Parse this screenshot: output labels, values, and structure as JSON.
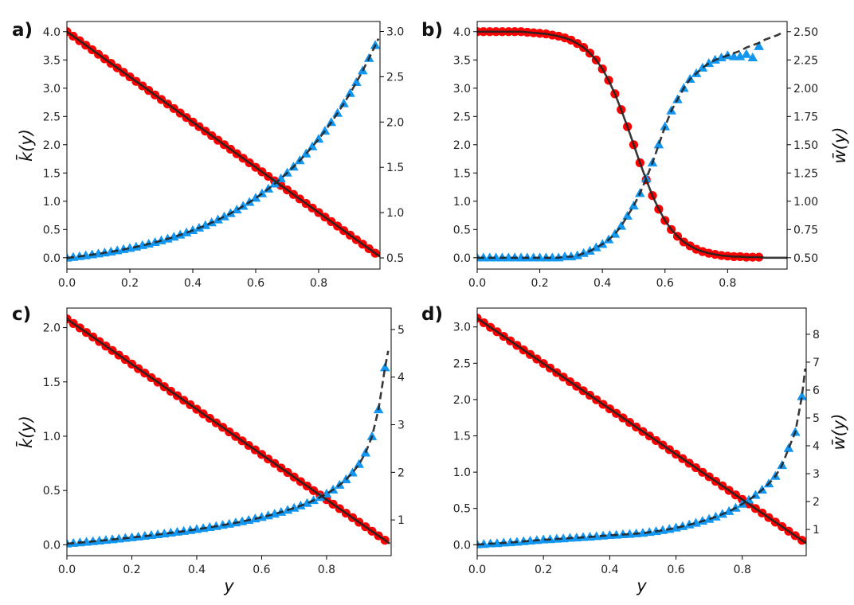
{
  "chart_data": {
    "x": [
      0,
      0.02,
      0.04,
      0.06,
      0.08,
      0.1,
      0.12,
      0.14,
      0.16,
      0.18,
      0.2,
      0.22,
      0.24,
      0.26,
      0.28,
      0.3,
      0.32,
      0.34,
      0.36,
      0.38,
      0.4,
      0.42,
      0.44,
      0.46,
      0.48,
      0.5,
      0.52,
      0.54,
      0.56,
      0.58,
      0.6,
      0.62,
      0.64,
      0.66,
      0.68,
      0.7,
      0.72,
      0.74,
      0.76,
      0.78,
      0.8,
      0.82,
      0.84,
      0.86,
      0.88,
      0.9,
      0.92,
      0.94,
      0.96,
      0.98
    ],
    "colors": {
      "k_markers": "#ff0000",
      "w_markers": "#1296f0",
      "theory": "#222222"
    },
    "panels": [
      {
        "label": "a)",
        "type": "line+scatter",
        "xlabel": "",
        "ylabel_left": "k̄(y)",
        "ylabel_right": "",
        "xlim": [
          0,
          0.995
        ],
        "ylim_left": [
          -0.2,
          4.18
        ],
        "ylim_right": [
          0.377,
          3.11
        ],
        "xticks": [
          0,
          0.2,
          0.4,
          0.6,
          0.8
        ],
        "xticklabels": [
          "0.0",
          "0.2",
          "0.4",
          "0.6",
          "0.8"
        ],
        "yticks_left": [
          0,
          0.5,
          1,
          1.5,
          2,
          2.5,
          3,
          3.5,
          4
        ],
        "yticklabels_left": [
          "0.0",
          "0.5",
          "1.0",
          "1.5",
          "2.0",
          "2.5",
          "3.0",
          "3.5",
          "4.0"
        ],
        "yticks_right": [
          0.5,
          1,
          1.5,
          2,
          2.5,
          3
        ],
        "yticklabels_right": [
          "0.5",
          "1.0",
          "1.5",
          "2.0",
          "2.5",
          "3.0"
        ],
        "series": [
          {
            "name": "k_markers",
            "axis": "left",
            "kind": "circle",
            "values": [
              4.0,
              3.92,
              3.84,
              3.76,
              3.68,
              3.6,
              3.52,
              3.44,
              3.36,
              3.28,
              3.2,
              3.12,
              3.04,
              2.96,
              2.88,
              2.8,
              2.72,
              2.64,
              2.56,
              2.48,
              2.4,
              2.32,
              2.24,
              2.16,
              2.08,
              2.0,
              1.92,
              1.84,
              1.76,
              1.68,
              1.6,
              1.52,
              1.44,
              1.36,
              1.28,
              1.2,
              1.12,
              1.04,
              0.96,
              0.88,
              0.8,
              0.72,
              0.64,
              0.56,
              0.48,
              0.4,
              0.32,
              0.24,
              0.16,
              0.08
            ]
          },
          {
            "name": "w_markers",
            "axis": "right",
            "kind": "triangle",
            "values": [
              0.5,
              0.508,
              0.517,
              0.526,
              0.536,
              0.546,
              0.557,
              0.568,
              0.581,
              0.594,
              0.608,
              0.622,
              0.638,
              0.655,
              0.672,
              0.691,
              0.711,
              0.732,
              0.755,
              0.779,
              0.804,
              0.831,
              0.859,
              0.89,
              0.922,
              0.956,
              0.992,
              1.031,
              1.072,
              1.115,
              1.161,
              1.21,
              1.262,
              1.318,
              1.376,
              1.439,
              1.505,
              1.575,
              1.65,
              1.729,
              1.813,
              1.902,
              1.997,
              2.098,
              2.205,
              2.318,
              2.439,
              2.567,
              2.703,
              2.847
            ]
          },
          {
            "name": "k_theory",
            "axis": "left",
            "kind": "solid",
            "values_from": "k_markers",
            "extra": [
              [
                0.995,
                0.02
              ]
            ]
          },
          {
            "name": "w_theory",
            "axis": "right",
            "kind": "dashed",
            "values_from": "w_markers",
            "extra": [
              [
                0.99,
                2.92
              ]
            ]
          }
        ]
      },
      {
        "label": "b)",
        "type": "line+scatter",
        "xlabel": "",
        "ylabel_left": "",
        "ylabel_right": "w̄(y)",
        "xlim": [
          0,
          0.99
        ],
        "ylim_left": [
          -0.2,
          4.18
        ],
        "ylim_right": [
          0.4,
          2.59
        ],
        "xticks": [
          0,
          0.2,
          0.4,
          0.6,
          0.8
        ],
        "xticklabels": [
          "0.0",
          "0.2",
          "0.4",
          "0.6",
          "0.8"
        ],
        "yticks_left": [
          0,
          0.5,
          1,
          1.5,
          2,
          2.5,
          3,
          3.5,
          4
        ],
        "yticklabels_left": [
          "0.0",
          "0.5",
          "1.0",
          "1.5",
          "2.0",
          "2.5",
          "3.0",
          "3.5",
          "4.0"
        ],
        "yticks_right": [
          0.5,
          0.75,
          1,
          1.25,
          1.5,
          1.75,
          2,
          2.25,
          2.5
        ],
        "yticklabels_right": [
          "0.50",
          "0.75",
          "1.00",
          "1.25",
          "1.50",
          "1.75",
          "2.00",
          "2.25",
          "2.50"
        ],
        "series": [
          {
            "name": "k_markers",
            "axis": "left",
            "kind": "circle",
            "values": [
              4.0,
              4.0,
              4.0,
              4.0,
              4.0,
              4.0,
              4.0,
              4.0,
              3.99,
              3.98,
              3.97,
              3.96,
              3.94,
              3.92,
              3.89,
              3.85,
              3.79,
              3.72,
              3.62,
              3.5,
              3.34,
              3.14,
              2.9,
              2.62,
              2.32,
              2.0,
              1.68,
              1.38,
              1.1,
              0.86,
              0.66,
              0.5,
              0.38,
              0.28,
              0.21,
              0.15,
              0.11,
              0.08,
              0.06,
              0.04,
              0.03,
              0.02,
              0.02,
              0.01,
              0.01,
              0.01
            ]
          },
          {
            "name": "w_markers",
            "axis": "right",
            "kind": "triangle",
            "values": [
              0.5,
              0.5,
              0.5,
              0.5,
              0.5,
              0.5,
              0.5,
              0.5,
              0.5,
              0.5,
              0.5,
              0.5,
              0.5,
              0.5,
              0.51,
              0.51,
              0.52,
              0.54,
              0.56,
              0.59,
              0.62,
              0.66,
              0.71,
              0.78,
              0.87,
              0.96,
              1.07,
              1.2,
              1.34,
              1.5,
              1.66,
              1.8,
              1.9,
              2.0,
              2.08,
              2.13,
              2.18,
              2.22,
              2.25,
              2.27,
              2.29,
              2.28,
              2.28,
              2.3,
              2.27,
              2.37
            ]
          },
          {
            "name": "k_theory",
            "axis": "left",
            "kind": "solid",
            "values_from": "k_markers",
            "extra": [
              [
                0.92,
                0
              ],
              [
                0.94,
                0
              ],
              [
                0.96,
                0
              ],
              [
                0.98,
                0
              ],
              [
                0.99,
                0
              ]
            ]
          },
          {
            "name": "w_theory",
            "axis": "right",
            "kind": "dashed",
            "values": [
              0.5,
              0.5,
              0.5,
              0.5,
              0.5,
              0.5,
              0.5,
              0.5,
              0.5,
              0.5,
              0.5,
              0.5,
              0.5,
              0.5,
              0.51,
              0.51,
              0.52,
              0.54,
              0.56,
              0.59,
              0.62,
              0.66,
              0.71,
              0.78,
              0.87,
              0.96,
              1.07,
              1.2,
              1.34,
              1.5,
              1.66,
              1.8,
              1.9,
              2.0,
              2.08,
              2.13,
              2.18,
              2.22,
              2.25,
              2.27,
              2.29,
              2.31,
              2.33,
              2.36,
              2.38,
              2.4,
              2.43,
              2.45,
              2.47,
              2.5
            ]
          }
        ]
      },
      {
        "label": "c)",
        "type": "line+scatter",
        "xlabel": "y",
        "ylabel_left": "k̄(y)",
        "ylabel_right": "",
        "xlim": [
          0,
          0.999
        ],
        "ylim_left": [
          -0.1,
          2.18
        ],
        "ylim_right": [
          0.25,
          5.45
        ],
        "xticks": [
          0,
          0.2,
          0.4,
          0.6,
          0.8
        ],
        "xticklabels": [
          "0.0",
          "0.2",
          "0.4",
          "0.6",
          "0.8"
        ],
        "yticks_left": [
          0,
          0.5,
          1,
          1.5,
          2
        ],
        "yticklabels_left": [
          "0.0",
          "0.5",
          "1.0",
          "1.5",
          "2.0"
        ],
        "yticks_right": [
          1,
          2,
          3,
          4,
          5
        ],
        "yticklabels_right": [
          "1",
          "2",
          "3",
          "4",
          "5"
        ],
        "series": [
          {
            "name": "k_markers",
            "axis": "left",
            "kind": "circle",
            "values": [
              2.08,
              2.038,
              1.997,
              1.955,
              1.914,
              1.872,
              1.83,
              1.789,
              1.747,
              1.706,
              1.664,
              1.622,
              1.581,
              1.539,
              1.498,
              1.456,
              1.414,
              1.373,
              1.331,
              1.29,
              1.248,
              1.206,
              1.165,
              1.123,
              1.082,
              1.04,
              0.998,
              0.957,
              0.915,
              0.874,
              0.832,
              0.79,
              0.749,
              0.707,
              0.666,
              0.624,
              0.582,
              0.541,
              0.499,
              0.458,
              0.416,
              0.374,
              0.333,
              0.291,
              0.25,
              0.208,
              0.166,
              0.125,
              0.083,
              0.042
            ]
          },
          {
            "name": "w_markers",
            "axis": "right",
            "kind": "triangle",
            "values": [
              0.5,
              0.512,
              0.524,
              0.536,
              0.549,
              0.562,
              0.575,
              0.589,
              0.602,
              0.617,
              0.631,
              0.646,
              0.662,
              0.677,
              0.694,
              0.71,
              0.728,
              0.746,
              0.764,
              0.783,
              0.803,
              0.824,
              0.845,
              0.867,
              0.891,
              0.915,
              0.941,
              0.967,
              0.996,
              1.025,
              1.057,
              1.09,
              1.126,
              1.164,
              1.206,
              1.25,
              1.299,
              1.352,
              1.411,
              1.476,
              1.55,
              1.634,
              1.733,
              1.849,
              1.991,
              2.171,
              2.409,
              2.753,
              3.318,
              4.2
            ]
          },
          {
            "name": "k_theory",
            "axis": "left",
            "kind": "solid",
            "values_from": "k_markers",
            "extra": [
              [
                0.995,
                0.01
              ]
            ]
          },
          {
            "name": "w_theory",
            "axis": "right",
            "kind": "dashed",
            "values_from": "w_markers",
            "extra": [
              [
                0.99,
                4.55
              ]
            ]
          }
        ]
      },
      {
        "label": "d)",
        "type": "line+scatter",
        "xlabel": "y",
        "ylabel_left": "",
        "ylabel_right": "w̄(y)",
        "xlim": [
          0,
          0.993
        ],
        "ylim_left": [
          -0.15,
          3.26
        ],
        "ylim_right": [
          0.06,
          8.94
        ],
        "xticks": [
          0,
          0.2,
          0.4,
          0.6,
          0.8
        ],
        "xticklabels": [
          "0.0",
          "0.2",
          "0.4",
          "0.6",
          "0.8"
        ],
        "yticks_left": [
          0,
          0.5,
          1,
          1.5,
          2,
          2.5,
          3
        ],
        "yticklabels_left": [
          "0.0",
          "0.5",
          "1.0",
          "1.5",
          "2.0",
          "2.5",
          "3.0"
        ],
        "yticks_right": [
          1,
          2,
          3,
          4,
          5,
          6,
          7,
          8
        ],
        "yticklabels_right": [
          "1",
          "2",
          "3",
          "4",
          "5",
          "6",
          "7",
          "8"
        ],
        "series": [
          {
            "name": "k_markers",
            "axis": "left",
            "kind": "circle",
            "values": [
              3.12,
              3.058,
              2.995,
              2.933,
              2.87,
              2.808,
              2.746,
              2.683,
              2.621,
              2.558,
              2.496,
              2.434,
              2.371,
              2.309,
              2.246,
              2.184,
              2.122,
              2.059,
              1.997,
              1.934,
              1.872,
              1.81,
              1.747,
              1.685,
              1.622,
              1.56,
              1.498,
              1.435,
              1.373,
              1.31,
              1.248,
              1.186,
              1.123,
              1.061,
              0.998,
              0.936,
              0.874,
              0.811,
              0.749,
              0.686,
              0.624,
              0.562,
              0.499,
              0.437,
              0.374,
              0.312,
              0.25,
              0.187,
              0.125,
              0.062
            ]
          },
          {
            "name": "w_markers",
            "axis": "right",
            "kind": "triangle",
            "values": [
              0.46,
              0.47,
              0.49,
              0.5,
              0.52,
              0.53,
              0.55,
              0.57,
              0.59,
              0.61,
              0.63,
              0.64,
              0.66,
              0.67,
              0.69,
              0.7,
              0.72,
              0.73,
              0.75,
              0.77,
              0.79,
              0.8,
              0.82,
              0.83,
              0.85,
              0.87,
              0.9,
              0.93,
              0.97,
              1.01,
              1.06,
              1.11,
              1.17,
              1.23,
              1.3,
              1.37,
              1.45,
              1.55,
              1.65,
              1.77,
              1.91,
              2.06,
              2.23,
              2.42,
              2.64,
              2.91,
              3.3,
              3.91,
              4.49,
              5.77
            ]
          },
          {
            "name": "k_theory",
            "axis": "left",
            "kind": "solid",
            "values_from": "k_markers",
            "extra": [
              [
                0.993,
                0.02
              ]
            ]
          },
          {
            "name": "w_theory",
            "axis": "right",
            "kind": "dashed",
            "values_from": "w_markers",
            "extra": [
              [
                0.99,
                6.77
              ]
            ]
          }
        ]
      }
    ]
  }
}
